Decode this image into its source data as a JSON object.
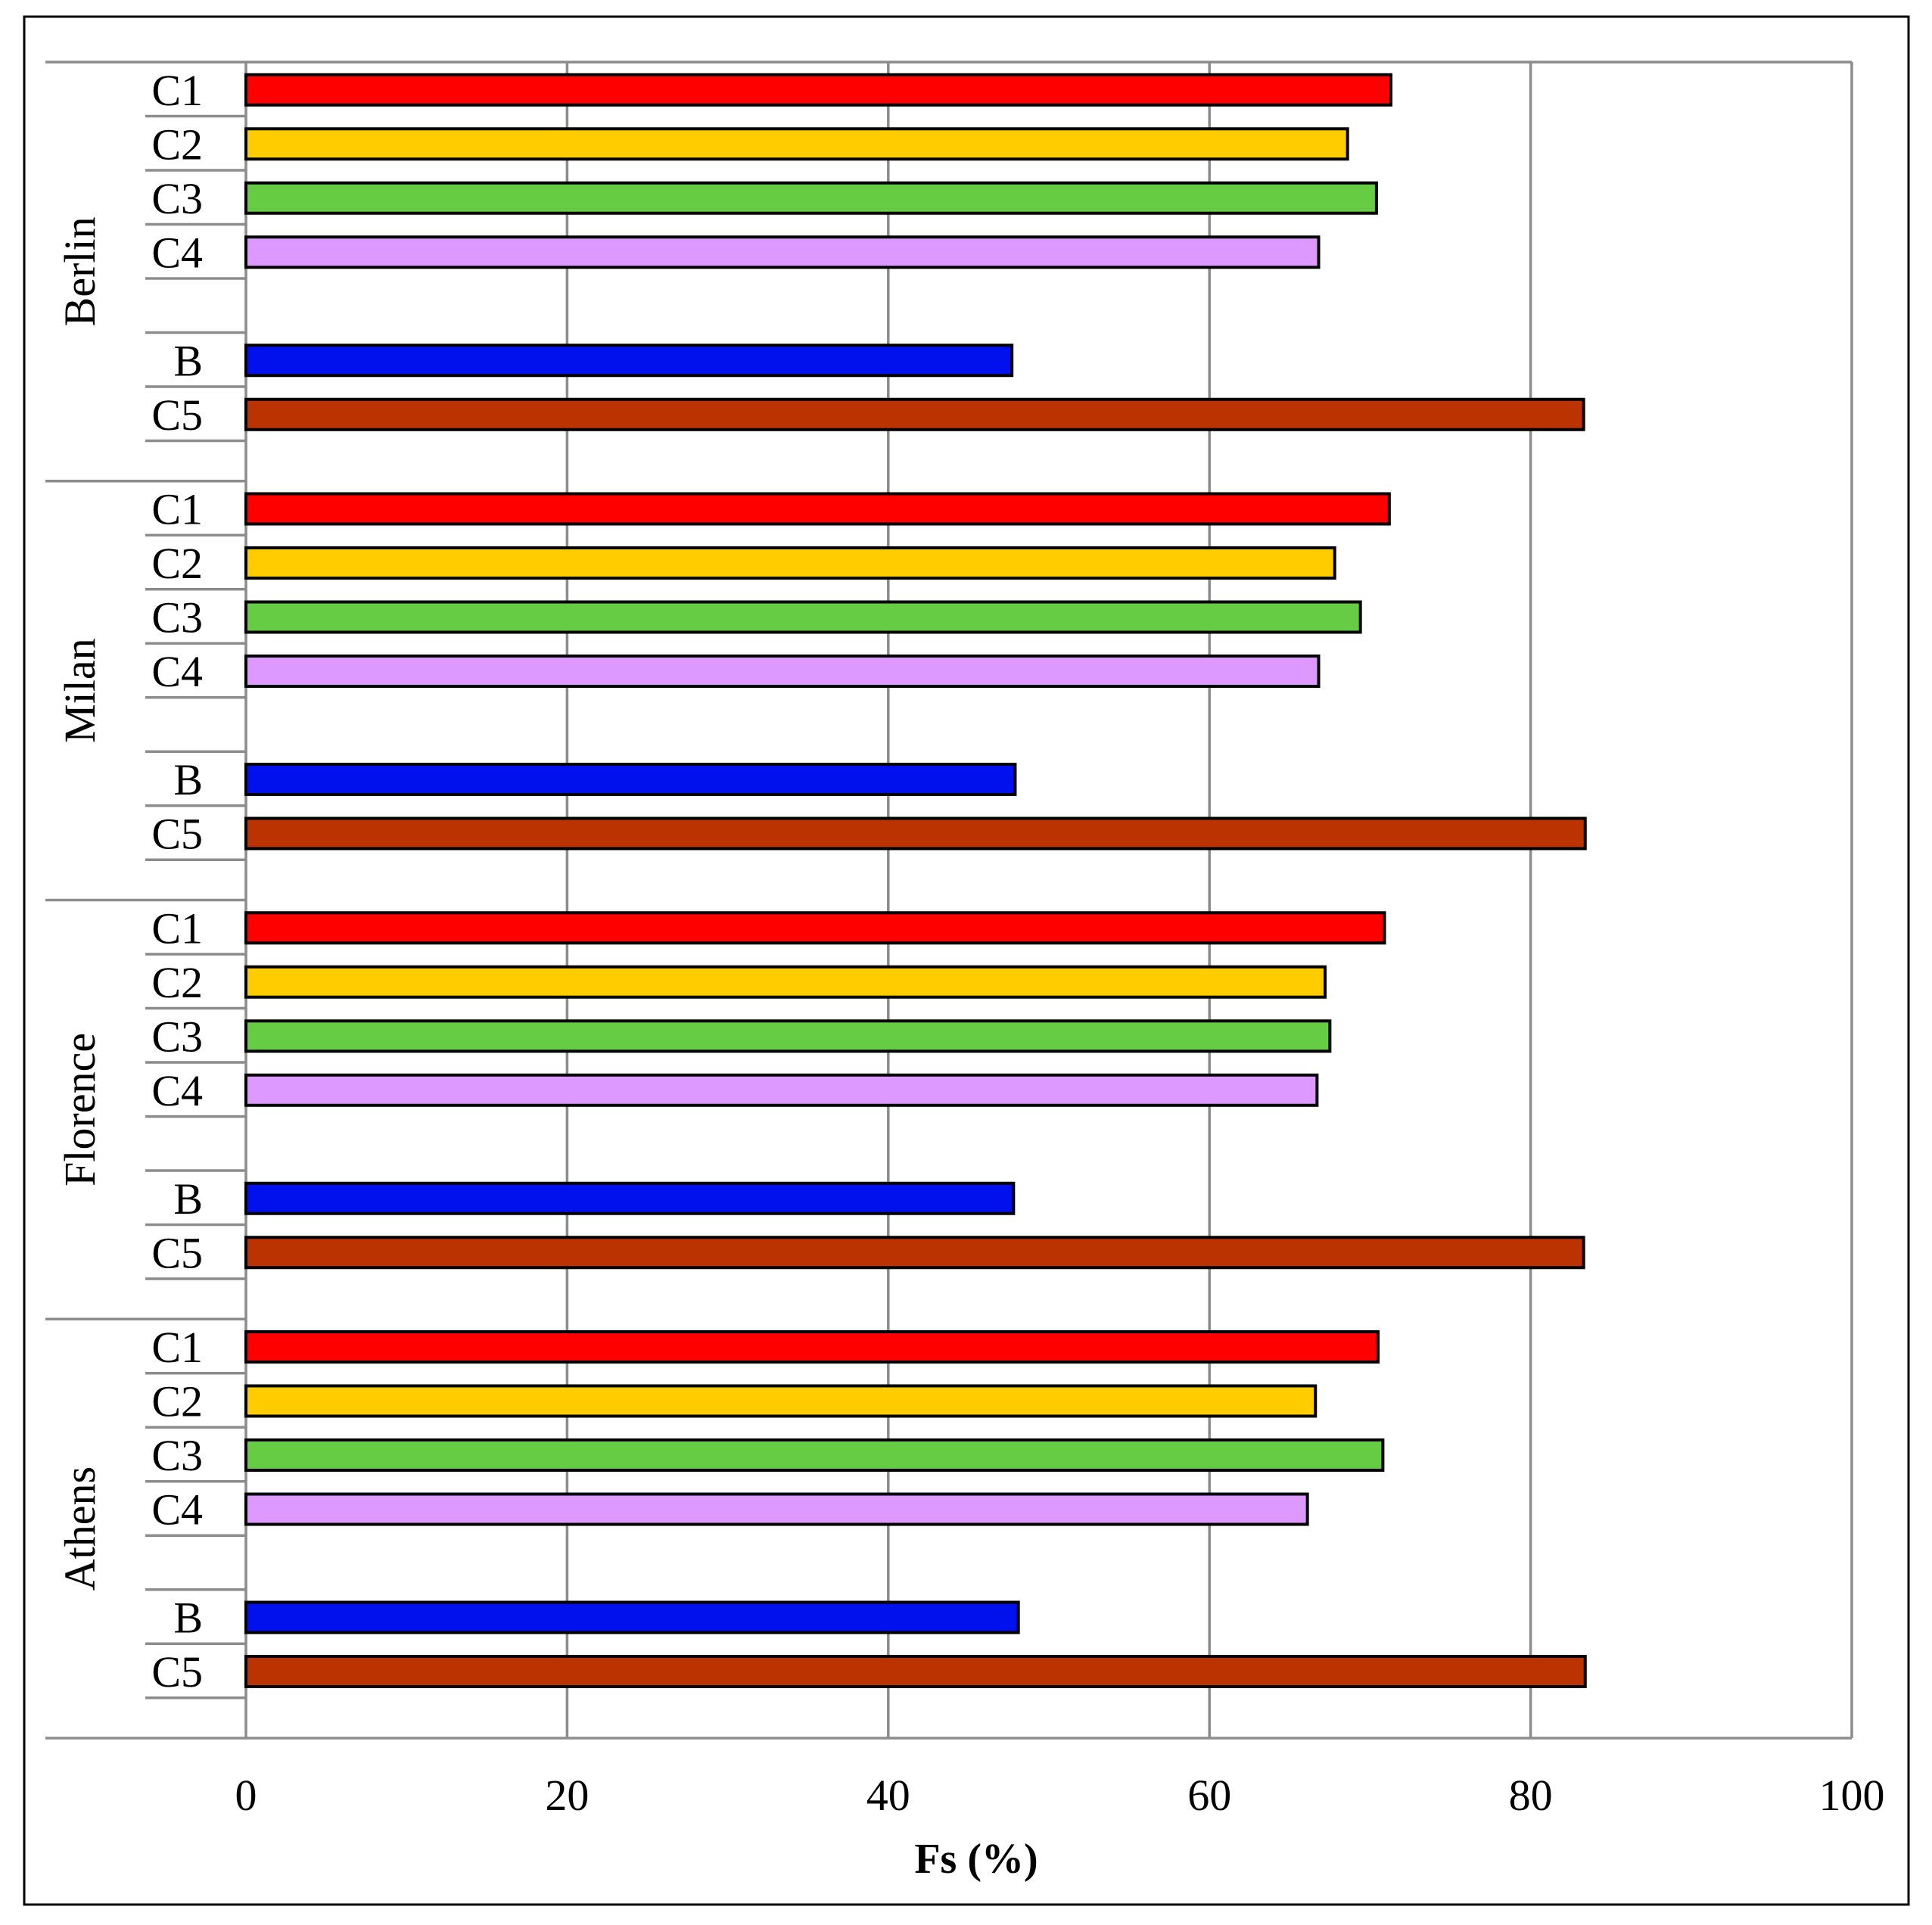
{
  "chart_data": {
    "type": "bar",
    "orientation": "horizontal",
    "xlabel": "Fs (%)",
    "ylabel": "",
    "title": "",
    "xlim": [
      0,
      100
    ],
    "xticks": [
      "0",
      "20",
      "40",
      "60",
      "80",
      "100"
    ],
    "grid": "vertical",
    "legend": "none",
    "groups": [
      {
        "name": "Berlin",
        "bars": [
          {
            "label": "C1",
            "value": 71.3,
            "color": "#ff0000"
          },
          {
            "label": "C2",
            "value": 68.6,
            "color": "#ffcc00"
          },
          {
            "label": "C3",
            "value": 70.4,
            "color": "#66cc44"
          },
          {
            "label": "C4",
            "value": 66.8,
            "color": "#dd99ff"
          },
          {
            "label": "B",
            "value": 47.7,
            "color": "#0011ee"
          },
          {
            "label": "C5",
            "value": 83.3,
            "color": "#bb3300"
          }
        ]
      },
      {
        "name": "Milan",
        "bars": [
          {
            "label": "C1",
            "value": 71.2,
            "color": "#ff0000"
          },
          {
            "label": "C2",
            "value": 67.8,
            "color": "#ffcc00"
          },
          {
            "label": "C3",
            "value": 69.4,
            "color": "#66cc44"
          },
          {
            "label": "C4",
            "value": 66.8,
            "color": "#dd99ff"
          },
          {
            "label": "B",
            "value": 47.9,
            "color": "#0011ee"
          },
          {
            "label": "C5",
            "value": 83.4,
            "color": "#bb3300"
          }
        ]
      },
      {
        "name": "Florence",
        "bars": [
          {
            "label": "C1",
            "value": 70.9,
            "color": "#ff0000"
          },
          {
            "label": "C2",
            "value": 67.2,
            "color": "#ffcc00"
          },
          {
            "label": "C3",
            "value": 67.5,
            "color": "#66cc44"
          },
          {
            "label": "C4",
            "value": 66.7,
            "color": "#dd99ff"
          },
          {
            "label": "B",
            "value": 47.8,
            "color": "#0011ee"
          },
          {
            "label": "C5",
            "value": 83.3,
            "color": "#bb3300"
          }
        ]
      },
      {
        "name": "Athens",
        "bars": [
          {
            "label": "C1",
            "value": 70.5,
            "color": "#ff0000"
          },
          {
            "label": "C2",
            "value": 66.6,
            "color": "#ffcc00"
          },
          {
            "label": "C3",
            "value": 70.8,
            "color": "#66cc44"
          },
          {
            "label": "C4",
            "value": 66.1,
            "color": "#dd99ff"
          },
          {
            "label": "B",
            "value": 48.1,
            "color": "#0011ee"
          },
          {
            "label": "C5",
            "value": 83.4,
            "color": "#bb3300"
          }
        ]
      }
    ]
  }
}
